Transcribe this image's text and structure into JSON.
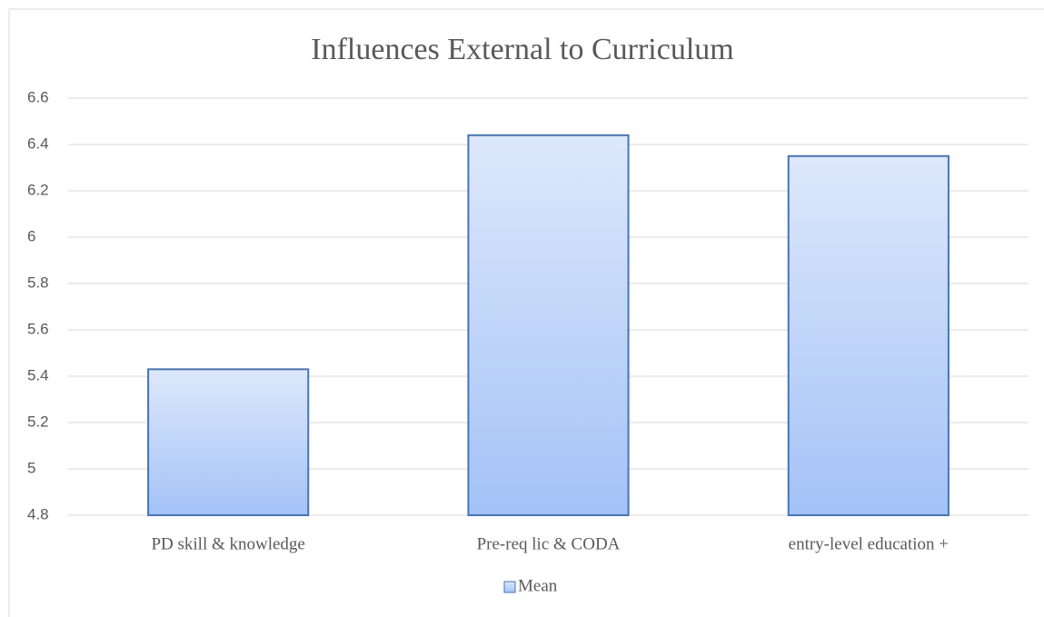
{
  "chart_data": {
    "type": "bar",
    "title": "Influences External to Curriculum",
    "categories": [
      "PD skill & knowledge",
      "Pre-req lic & CODA",
      "entry-level education +"
    ],
    "series": [
      {
        "name": "Mean",
        "color": "#a4c2f7",
        "values": [
          5.43,
          6.44,
          6.35
        ]
      }
    ],
    "ylim": [
      4.8,
      6.6
    ],
    "yticks": [
      4.8,
      5,
      5.2,
      5.4,
      5.6,
      5.8,
      6,
      6.2,
      6.4,
      6.6
    ],
    "grid": true,
    "legend": "bottom"
  }
}
